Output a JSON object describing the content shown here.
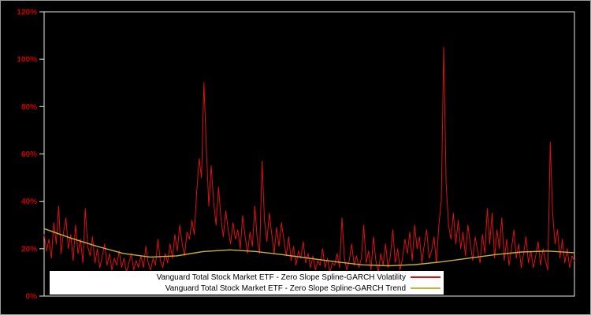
{
  "chart_data": {
    "type": "line",
    "title": "",
    "xlabel": "",
    "ylabel": "",
    "ylim": [
      0,
      120
    ],
    "x_axis": {
      "tick_labels": []
    },
    "yticks": [
      {
        "value": 0,
        "label": "0%"
      },
      {
        "value": 20,
        "label": "20%"
      },
      {
        "value": 40,
        "label": "40%"
      },
      {
        "value": 60,
        "label": "60%"
      },
      {
        "value": 80,
        "label": "80%"
      },
      {
        "value": 100,
        "label": "100%"
      },
      {
        "value": 120,
        "label": "120%"
      }
    ],
    "background_color": "#000000",
    "axis_box_color": "#e8e8e8",
    "tick_label_color": "#cc0000",
    "grid": false,
    "legend_position": "bottom-center-inside",
    "legend_background": "#ffffff",
    "series": [
      {
        "name": "Vanguard Total Stock Market ETF - Zero Slope Spline-GARCH Volatility",
        "type": "line",
        "color": "#dd1111",
        "unit": "%",
        "values": [
          26,
          19,
          24,
          16,
          31,
          22,
          38,
          18,
          27,
          33,
          20,
          26,
          15,
          30,
          18,
          24,
          14,
          37,
          21,
          17,
          25,
          14,
          20,
          12,
          17,
          22,
          13,
          18,
          11,
          16,
          13,
          19,
          12,
          16,
          10,
          14,
          18,
          11,
          15,
          12,
          17,
          12,
          21,
          14,
          11,
          16,
          13,
          24,
          15,
          12,
          18,
          14,
          22,
          16,
          26,
          19,
          30,
          22,
          17,
          27,
          24,
          32,
          26,
          44,
          58,
          50,
          90,
          62,
          38,
          55,
          40,
          30,
          46,
          33,
          25,
          36,
          28,
          22,
          31,
          24,
          28,
          20,
          34,
          25,
          18,
          27,
          21,
          38,
          24,
          18,
          57,
          32,
          23,
          35,
          26,
          18,
          29,
          21,
          31,
          24,
          17,
          25,
          15,
          21,
          13,
          19,
          16,
          23,
          14,
          18,
          12,
          17,
          11,
          15,
          13,
          20,
          12,
          16,
          10,
          14,
          13,
          18,
          12,
          33,
          16,
          11,
          15,
          22,
          13,
          17,
          12,
          16,
          30,
          14,
          19,
          11,
          25,
          15,
          10,
          18,
          13,
          22,
          12,
          17,
          28,
          14,
          20,
          11,
          16,
          24,
          18,
          27,
          15,
          30,
          20,
          25,
          14,
          22,
          28,
          16,
          19,
          25,
          14,
          30,
          40,
          105,
          48,
          30,
          24,
          35,
          22,
          32,
          20,
          27,
          17,
          30,
          22,
          15,
          25,
          19,
          14,
          26,
          18,
          37,
          22,
          35,
          16,
          28,
          20,
          33,
          15,
          24,
          13,
          20,
          28,
          16,
          22,
          12,
          18,
          25,
          14,
          19,
          12,
          17,
          23,
          13,
          20,
          15,
          11,
          65,
          35,
          22,
          28,
          16,
          24,
          14,
          20,
          12,
          17,
          15
        ]
      },
      {
        "name": "Vanguard Total Stock Market ETF - Zero Slope Spline-GARCH Trend",
        "type": "line",
        "color": "#c9b037",
        "unit": "%",
        "points": [
          [
            0.0,
            28.5
          ],
          [
            0.05,
            24.5
          ],
          [
            0.1,
            21.0
          ],
          [
            0.15,
            18.0
          ],
          [
            0.2,
            16.5
          ],
          [
            0.25,
            17.0
          ],
          [
            0.3,
            18.8
          ],
          [
            0.35,
            19.5
          ],
          [
            0.4,
            18.8
          ],
          [
            0.45,
            17.5
          ],
          [
            0.5,
            16.0
          ],
          [
            0.55,
            14.5
          ],
          [
            0.6,
            13.2
          ],
          [
            0.65,
            12.8
          ],
          [
            0.7,
            13.3
          ],
          [
            0.75,
            14.5
          ],
          [
            0.8,
            16.0
          ],
          [
            0.85,
            17.5
          ],
          [
            0.9,
            18.6
          ],
          [
            0.95,
            19.0
          ],
          [
            1.0,
            18.3
          ]
        ]
      }
    ]
  },
  "legend": {
    "items": [
      {
        "label": "Vanguard Total Stock Market ETF - Zero Slope Spline-GARCH Volatility",
        "color": "#dd1111"
      },
      {
        "label": "Vanguard Total Stock Market ETF - Zero Slope Spline-GARCH Trend",
        "color": "#c9b037"
      }
    ]
  }
}
